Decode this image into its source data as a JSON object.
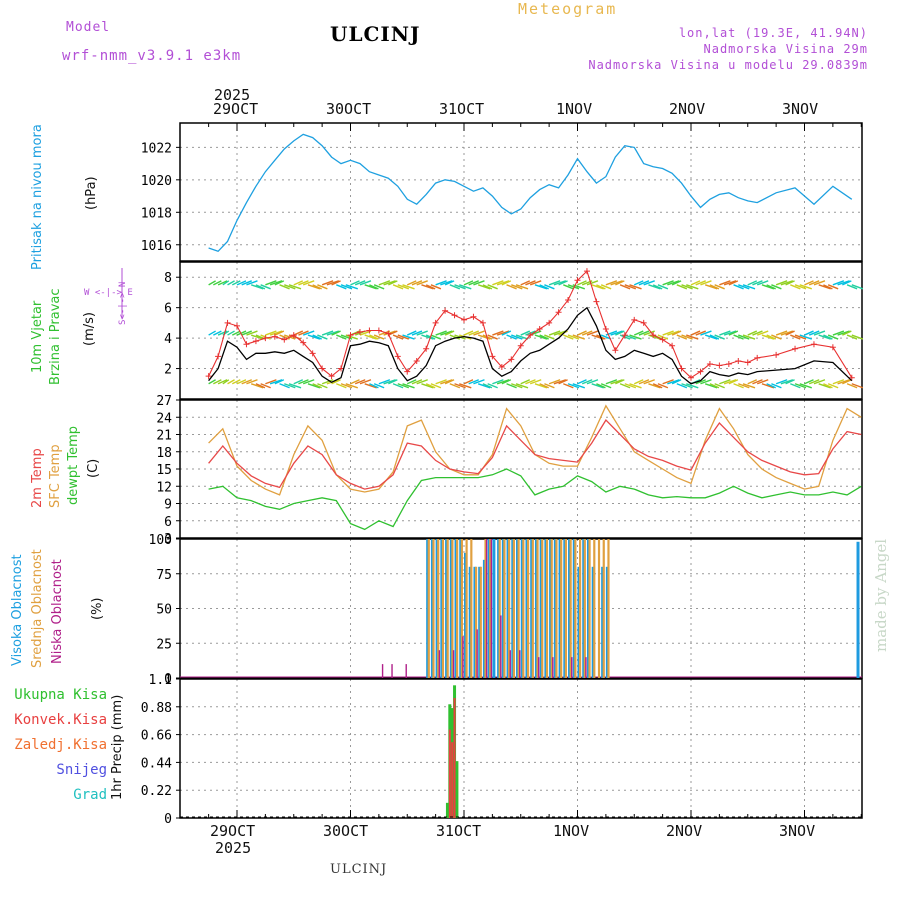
{
  "header": {
    "model_label": "Model",
    "model_name": "wrf-nmm_v3.9.1 e3km",
    "station_title": "ULCINJ",
    "meteogram_label": "Meteogram",
    "lonlat": "lon,lat (19.3E, 41.94N)",
    "elevation": "Nadmorska Visina 29m",
    "model_elevation": "Nadmorska Visina u modelu 29.0839m"
  },
  "footer": {
    "station": "ULCINJ",
    "credit": "made by Angel"
  },
  "axis": {
    "year": "2025",
    "days": [
      "29OCT",
      "30OCT",
      "31OCT",
      "1NOV",
      "2NOV",
      "3NOV"
    ]
  },
  "panel_labels": {
    "pressure": {
      "line1": "Pritisak na nivou mora",
      "unit": "(hPa)"
    },
    "wind": {
      "line1": "10m Vjetar",
      "line2": "Brzina i Pravac",
      "unit": "(m/s)",
      "compass": "W <-|-> E",
      "compass2": "S<-|-> N"
    },
    "temp": {
      "line1": "2m Temp",
      "line2": "SFC Temp",
      "line3": "dewpt Temp",
      "unit": "(C)"
    },
    "cloud": {
      "line1": "Visoka Oblacnost",
      "line2": "Srednja Oblacnost",
      "line3": "Niska Oblacnost",
      "unit": "(%)"
    },
    "precip": {
      "unit": "1hr Precip (mm)"
    }
  },
  "precip_legend": [
    "Ukupna Kisa",
    "Konvek.Kisa",
    "Zaledj.Kisa",
    "Snijeg",
    "Grad"
  ],
  "colors": {
    "pressure": "#1ea0e0",
    "wind_speed": "#000000",
    "gust": "#e83030",
    "temp2m": "#e84848",
    "sfc_temp": "#e0a040",
    "dewpt": "#30c030",
    "cloud_high": "#1e9be0",
    "cloud_mid": "#e0a040",
    "cloud_low": "#b0208a",
    "rain_total": "#30c030",
    "rain_conv": "#e84040",
    "rain_frz": "#f07030",
    "snow": "#5050e0",
    "hail": "#20c0c0",
    "header_purple": "#b24fd6"
  },
  "chart_data": [
    {
      "type": "line",
      "title": "Pritisak na nivou mora",
      "ylabel": "(hPa)",
      "ylim": [
        1015,
        1023.5
      ],
      "yticks": [
        1016,
        1018,
        1020,
        1022
      ],
      "x_unit": "hours from 29OCT 00UTC",
      "series": [
        {
          "name": "Pressure",
          "x": [
            -6,
            -4,
            -2,
            0,
            2,
            4,
            6,
            8,
            10,
            12,
            14,
            16,
            18,
            20,
            22,
            24,
            26,
            28,
            30,
            32,
            34,
            36,
            38,
            40,
            42,
            44,
            46,
            48,
            50,
            52,
            54,
            56,
            58,
            60,
            62,
            64,
            66,
            68,
            70,
            72,
            74,
            76,
            78,
            80,
            82,
            84,
            86,
            88,
            90,
            92,
            94,
            96,
            98,
            100,
            102,
            104,
            106,
            108,
            110,
            114,
            118,
            122,
            126,
            130
          ],
          "values": [
            1015.8,
            1015.6,
            1016.2,
            1017.5,
            1018.6,
            1019.6,
            1020.5,
            1021.2,
            1021.9,
            1022.4,
            1022.8,
            1022.6,
            1022.1,
            1021.4,
            1021.0,
            1021.2,
            1021.0,
            1020.5,
            1020.3,
            1020.1,
            1019.6,
            1018.8,
            1018.5,
            1019.1,
            1019.8,
            1020.0,
            1019.9,
            1019.6,
            1019.3,
            1019.5,
            1019.0,
            1018.3,
            1017.9,
            1018.2,
            1018.9,
            1019.4,
            1019.7,
            1019.5,
            1020.3,
            1021.3,
            1020.5,
            1019.8,
            1020.2,
            1021.4,
            1022.1,
            1022.0,
            1021.0,
            1020.8,
            1020.7,
            1020.4,
            1019.8,
            1019.0,
            1018.3,
            1018.8,
            1019.1,
            1019.2,
            1018.9,
            1018.7,
            1018.6,
            1019.2,
            1019.5,
            1018.5,
            1019.6,
            1018.8
          ]
        }
      ]
    },
    {
      "type": "line",
      "title": "10m Vjetar Brzina i Pravac",
      "ylabel": "(m/s)",
      "ylim": [
        0,
        9
      ],
      "yticks": [
        2,
        4,
        6,
        8
      ],
      "series": [
        {
          "name": "Wind speed",
          "x": [
            -6,
            -4,
            -2,
            0,
            2,
            4,
            6,
            8,
            10,
            12,
            14,
            16,
            18,
            20,
            22,
            24,
            26,
            28,
            30,
            32,
            34,
            36,
            38,
            40,
            42,
            44,
            46,
            48,
            50,
            52,
            54,
            56,
            58,
            60,
            62,
            64,
            66,
            68,
            70,
            72,
            74,
            76,
            78,
            80,
            82,
            84,
            86,
            88,
            90,
            92,
            94,
            96,
            98,
            100,
            102,
            104,
            106,
            108,
            110,
            114,
            118,
            122,
            126,
            130
          ],
          "values": [
            1.2,
            2.0,
            3.8,
            3.4,
            2.6,
            3.0,
            3.0,
            3.1,
            3.0,
            3.2,
            2.8,
            2.4,
            1.5,
            1.1,
            1.4,
            3.5,
            3.6,
            3.8,
            3.7,
            3.5,
            2.0,
            1.2,
            1.5,
            2.2,
            3.5,
            3.8,
            4.0,
            4.1,
            4.0,
            3.8,
            2.0,
            1.5,
            1.8,
            2.5,
            3.0,
            3.2,
            3.6,
            4.0,
            4.6,
            5.5,
            6.0,
            4.8,
            3.2,
            2.6,
            2.8,
            3.2,
            3.0,
            2.8,
            3.0,
            2.6,
            1.5,
            1.0,
            1.2,
            1.8,
            1.6,
            1.5,
            1.7,
            1.6,
            1.8,
            1.9,
            2.0,
            2.5,
            2.4,
            1.2
          ]
        },
        {
          "name": "Gust",
          "x": [
            -6,
            -4,
            -2,
            0,
            2,
            4,
            6,
            8,
            10,
            12,
            14,
            16,
            18,
            20,
            22,
            24,
            26,
            28,
            30,
            32,
            34,
            36,
            38,
            40,
            42,
            44,
            46,
            48,
            50,
            52,
            54,
            56,
            58,
            60,
            62,
            64,
            66,
            68,
            70,
            72,
            74,
            76,
            78,
            80,
            82,
            84,
            86,
            88,
            90,
            92,
            94,
            96,
            98,
            100,
            102,
            104,
            106,
            108,
            110,
            114,
            118,
            122,
            126,
            130
          ],
          "values": [
            1.5,
            2.8,
            5.0,
            4.8,
            3.6,
            3.8,
            4.0,
            4.1,
            3.9,
            4.2,
            3.7,
            3.0,
            2.0,
            1.5,
            2.0,
            4.2,
            4.4,
            4.5,
            4.5,
            4.3,
            2.8,
            1.8,
            2.5,
            3.3,
            5.0,
            5.8,
            5.5,
            5.2,
            5.4,
            5.0,
            2.8,
            2.1,
            2.6,
            3.5,
            4.2,
            4.6,
            5.0,
            5.7,
            6.5,
            7.8,
            8.4,
            6.4,
            4.6,
            3.2,
            4.2,
            5.2,
            5.0,
            4.2,
            3.9,
            3.5,
            2.0,
            1.4,
            1.8,
            2.3,
            2.2,
            2.3,
            2.5,
            2.4,
            2.7,
            2.9,
            3.3,
            3.6,
            3.4,
            1.4
          ]
        }
      ]
    },
    {
      "type": "line",
      "title": "2m Temp / SFC Temp / dewpt Temp",
      "ylabel": "(C)",
      "ylim": [
        3,
        27
      ],
      "yticks": [
        3,
        6,
        9,
        12,
        15,
        18,
        21,
        24,
        27
      ],
      "series": [
        {
          "name": "2m Temp",
          "x": [
            -6,
            -3,
            0,
            3,
            6,
            9,
            12,
            15,
            18,
            21,
            24,
            27,
            30,
            33,
            36,
            39,
            42,
            45,
            48,
            51,
            54,
            57,
            60,
            63,
            66,
            69,
            72,
            75,
            78,
            81,
            84,
            87,
            90,
            93,
            96,
            99,
            102,
            105,
            108,
            111,
            114,
            117,
            120,
            123,
            126,
            129,
            132
          ],
          "values": [
            16.0,
            19.0,
            16.0,
            13.8,
            12.5,
            11.8,
            16.0,
            19.0,
            17.5,
            14.0,
            12.5,
            11.5,
            12.0,
            14.0,
            19.5,
            19.0,
            16.5,
            15.0,
            14.5,
            14.2,
            17.0,
            22.5,
            20.0,
            17.5,
            16.8,
            16.5,
            16.2,
            19.5,
            23.5,
            21.0,
            18.5,
            17.2,
            16.5,
            15.5,
            14.8,
            19.5,
            23.0,
            20.5,
            18.0,
            16.5,
            15.5,
            14.5,
            14.0,
            14.2,
            18.5,
            21.5,
            21.0
          ]
        },
        {
          "name": "SFC Temp",
          "x": [
            -6,
            -3,
            0,
            3,
            6,
            9,
            12,
            15,
            18,
            21,
            24,
            27,
            30,
            33,
            36,
            39,
            42,
            45,
            48,
            51,
            54,
            57,
            60,
            63,
            66,
            69,
            72,
            75,
            78,
            81,
            84,
            87,
            90,
            93,
            96,
            99,
            102,
            105,
            108,
            111,
            114,
            117,
            120,
            123,
            126,
            129,
            132
          ],
          "values": [
            19.5,
            22.0,
            15.5,
            13.0,
            11.5,
            10.5,
            17.5,
            22.5,
            20.0,
            14.0,
            11.5,
            11.0,
            11.5,
            14.5,
            22.5,
            23.5,
            18.0,
            15.0,
            14.0,
            14.0,
            17.5,
            25.5,
            22.5,
            17.5,
            16.0,
            15.5,
            15.5,
            20.5,
            26.0,
            22.0,
            18.0,
            16.5,
            15.0,
            13.5,
            12.5,
            20.0,
            25.5,
            22.0,
            17.5,
            15.0,
            13.5,
            12.5,
            11.5,
            12.0,
            20.0,
            25.5,
            24.0
          ]
        },
        {
          "name": "dewpt Temp",
          "x": [
            -6,
            -3,
            0,
            3,
            6,
            9,
            12,
            15,
            18,
            21,
            24,
            27,
            30,
            33,
            36,
            39,
            42,
            45,
            48,
            51,
            54,
            57,
            60,
            63,
            66,
            69,
            72,
            75,
            78,
            81,
            84,
            87,
            90,
            93,
            96,
            99,
            102,
            105,
            108,
            111,
            114,
            117,
            120,
            123,
            126,
            129,
            132
          ],
          "values": [
            11.5,
            12.0,
            10.0,
            9.5,
            8.5,
            8.0,
            9.0,
            9.5,
            10.0,
            9.5,
            5.5,
            4.5,
            6.0,
            5.0,
            9.5,
            13.0,
            13.5,
            13.5,
            13.5,
            13.5,
            14.0,
            15.0,
            13.8,
            10.5,
            11.5,
            12.0,
            13.8,
            12.8,
            11.0,
            12.0,
            11.5,
            10.5,
            10.0,
            10.2,
            10.0,
            10.0,
            10.8,
            12.0,
            10.8,
            10.0,
            10.5,
            11.0,
            10.5,
            10.5,
            11.0,
            10.5,
            12.0
          ]
        }
      ]
    },
    {
      "type": "bar",
      "title": "Visoka / Srednja / Niska Oblacnost",
      "ylabel": "(%)",
      "ylim": [
        0,
        100
      ],
      "yticks": [
        0,
        25,
        50,
        75,
        100
      ],
      "series": [
        {
          "name": "Visoka Oblacnost",
          "x": [
            40,
            41,
            42,
            43,
            44,
            45,
            46,
            47,
            48,
            49,
            50,
            51,
            52,
            53,
            54,
            55,
            56,
            57,
            58,
            59,
            60,
            61,
            62,
            63,
            64,
            65,
            66,
            67,
            68,
            69,
            70,
            71,
            72,
            73,
            74,
            75,
            76,
            77,
            78,
            131
          ],
          "values": [
            100,
            100,
            100,
            100,
            100,
            100,
            100,
            100,
            90,
            80,
            80,
            80,
            85,
            100,
            100,
            100,
            100,
            100,
            100,
            100,
            100,
            100,
            100,
            100,
            100,
            100,
            100,
            100,
            100,
            100,
            100,
            100,
            80,
            100,
            100,
            80,
            0,
            80,
            80,
            98
          ]
        },
        {
          "name": "Srednja Oblacnost",
          "x": [
            40,
            41,
            42,
            43,
            44,
            45,
            46,
            47,
            48,
            49,
            50,
            51,
            52,
            53,
            54,
            55,
            56,
            57,
            58,
            59,
            60,
            61,
            62,
            63,
            64,
            65,
            66,
            67,
            68,
            69,
            70,
            71,
            72,
            73,
            74,
            75,
            76,
            77,
            78
          ],
          "values": [
            100,
            100,
            100,
            100,
            100,
            100,
            100,
            100,
            100,
            100,
            80,
            80,
            100,
            100,
            0,
            100,
            100,
            100,
            100,
            100,
            100,
            100,
            100,
            100,
            100,
            100,
            100,
            100,
            100,
            100,
            100,
            100,
            100,
            100,
            100,
            100,
            100,
            100,
            100
          ]
        },
        {
          "name": "Niska Oblacnost",
          "x": [
            30,
            32,
            35,
            42,
            45,
            47,
            50,
            52,
            53,
            55,
            57,
            59,
            63,
            66,
            70,
            73
          ],
          "values": [
            10,
            10,
            10,
            20,
            20,
            30,
            35,
            100,
            100,
            45,
            20,
            20,
            15,
            15,
            15,
            15
          ]
        }
      ]
    },
    {
      "type": "bar",
      "title": "1hr Precip",
      "ylabel": "1hr Precip (mm)",
      "ylim": [
        0,
        1.1
      ],
      "yticks": [
        0,
        0.22,
        0.44,
        0.66,
        0.88,
        1.1
      ],
      "series": [
        {
          "name": "Ukupna Kisa",
          "x": [
            44.5,
            45,
            45.5,
            46,
            46.5
          ],
          "values": [
            0.12,
            0.9,
            0.87,
            1.05,
            0.45
          ]
        },
        {
          "name": "Konvek.Kisa",
          "x": [
            45,
            45.5,
            46
          ],
          "values": [
            0.7,
            0.6,
            0.95
          ]
        }
      ]
    }
  ]
}
